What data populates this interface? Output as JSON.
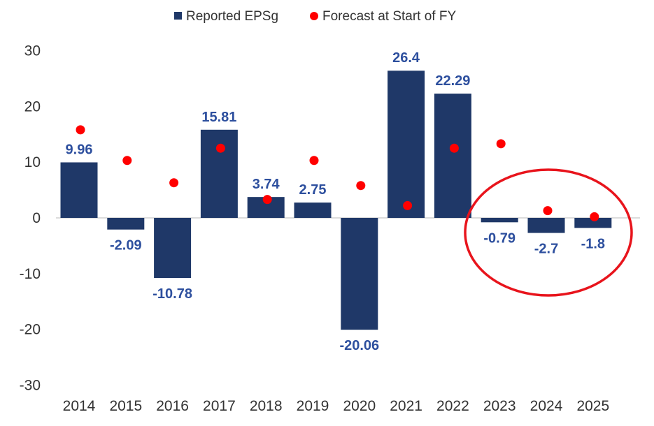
{
  "chart_data": {
    "type": "bar",
    "title": "",
    "xlabel": "",
    "ylabel": "",
    "ylim": [
      -30,
      30
    ],
    "yticks": [
      30,
      20,
      10,
      0,
      -10,
      -20,
      -30
    ],
    "categories": [
      "2014",
      "2015",
      "2016",
      "2017",
      "2018",
      "2019",
      "2020",
      "2021",
      "2022",
      "2023",
      "2024",
      "2025"
    ],
    "series": [
      {
        "name": "Reported EPSg",
        "kind": "bar",
        "color": "#1f3868",
        "values": [
          9.96,
          -2.09,
          -10.78,
          15.81,
          3.74,
          2.75,
          -20.06,
          26.4,
          22.29,
          -0.79,
          -2.7,
          -1.8
        ]
      },
      {
        "name": "Forecast at Start of FY",
        "kind": "dot",
        "color": "#ff0000",
        "values": [
          15.8,
          10.3,
          6.3,
          12.5,
          3.3,
          10.3,
          5.8,
          2.2,
          12.5,
          13.3,
          1.3,
          0.2
        ]
      }
    ],
    "data_labels": [
      "9.96",
      "-2.09",
      "-10.78",
      "15.81",
      "3.74",
      "2.75",
      "-20.06",
      "26.4",
      "22.29",
      "-0.79",
      "-2.7",
      "-1.8"
    ],
    "legend_position": "top-center",
    "grid": false,
    "annotation": {
      "type": "circle",
      "color": "#e8141c",
      "highlight": [
        "2023",
        "2024",
        "2025"
      ]
    }
  }
}
